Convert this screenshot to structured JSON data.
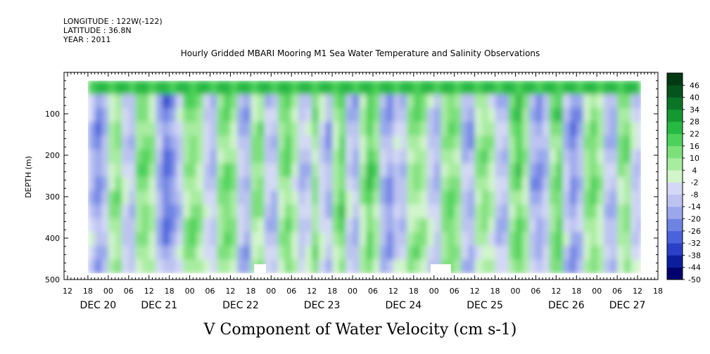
{
  "header": {
    "longitude": "LONGITUDE : 122W(-122)",
    "latitude": "LATITUDE : 36.8N",
    "year": "YEAR : 2011"
  },
  "chart_data": {
    "type": "heatmap",
    "title": "Hourly Gridded MBARI Mooring M1 Sea Water Temperature and Salinity Observations",
    "xlabel": "V Component of Water Velocity (cm s-1)",
    "ylabel": "DEPTH (m)",
    "x_unit": "hours",
    "x_range_hours": [
      0,
      174
    ],
    "data_range_hours": [
      6,
      169
    ],
    "y_range": [
      0,
      500
    ],
    "y_depth_top": 20,
    "y_data_range": [
      20,
      485
    ],
    "y_ticks": [
      100,
      200,
      300,
      400,
      500
    ],
    "hour_ticks": [
      {
        "h": 0,
        "label": "12"
      },
      {
        "h": 6,
        "label": "18"
      },
      {
        "h": 12,
        "label": "00"
      },
      {
        "h": 18,
        "label": "06"
      },
      {
        "h": 24,
        "label": "12"
      },
      {
        "h": 30,
        "label": "18"
      },
      {
        "h": 36,
        "label": "00"
      },
      {
        "h": 42,
        "label": "06"
      },
      {
        "h": 48,
        "label": "12"
      },
      {
        "h": 54,
        "label": "18"
      },
      {
        "h": 60,
        "label": "00"
      },
      {
        "h": 66,
        "label": "06"
      },
      {
        "h": 72,
        "label": "12"
      },
      {
        "h": 78,
        "label": "18"
      },
      {
        "h": 84,
        "label": "00"
      },
      {
        "h": 90,
        "label": "06"
      },
      {
        "h": 96,
        "label": "12"
      },
      {
        "h": 102,
        "label": "18"
      },
      {
        "h": 108,
        "label": "00"
      },
      {
        "h": 114,
        "label": "06"
      },
      {
        "h": 120,
        "label": "12"
      },
      {
        "h": 126,
        "label": "18"
      },
      {
        "h": 132,
        "label": "00"
      },
      {
        "h": 138,
        "label": "06"
      },
      {
        "h": 144,
        "label": "12"
      },
      {
        "h": 150,
        "label": "18"
      },
      {
        "h": 156,
        "label": "00"
      },
      {
        "h": 162,
        "label": "06"
      },
      {
        "h": 168,
        "label": "12"
      },
      {
        "h": 174,
        "label": "18"
      }
    ],
    "date_labels": [
      {
        "h": 9,
        "label": "DEC 20"
      },
      {
        "h": 27,
        "label": "DEC 21"
      },
      {
        "h": 51,
        "label": "DEC 22"
      },
      {
        "h": 75,
        "label": "DEC 23"
      },
      {
        "h": 99,
        "label": "DEC 24"
      },
      {
        "h": 123,
        "label": "DEC 25"
      },
      {
        "h": 147,
        "label": "DEC 26"
      },
      {
        "h": 165,
        "label": "DEC 27"
      }
    ],
    "colorbar": {
      "levels": [
        -50,
        -44,
        -38,
        -32,
        -26,
        -20,
        -14,
        -8,
        -2,
        4,
        10,
        16,
        22,
        28,
        34,
        40,
        46
      ],
      "labels": [
        "-50",
        "-44",
        "-38",
        "-32",
        "-26",
        "-20",
        "-14",
        "-8",
        "-2",
        "4",
        "10",
        "16",
        "22",
        "28",
        "34",
        "40",
        "46"
      ],
      "colors": [
        "#00006e",
        "#0d1e9c",
        "#2a40c6",
        "#4a62dc",
        "#6f83e4",
        "#9aa7ec",
        "#bcc3f1",
        "#d4d8f6",
        "#d2f5cc",
        "#a8eca0",
        "#7de07a",
        "#4cd25a",
        "#27b944",
        "#149832",
        "#0b7527",
        "#06541d",
        "#033a14"
      ]
    },
    "columns": [
      {
        "h": 6,
        "v": -12
      },
      {
        "h": 8,
        "v": -22
      },
      {
        "h": 10,
        "v": -12
      },
      {
        "h": 12,
        "v": 6
      },
      {
        "h": 14,
        "v": 12
      },
      {
        "h": 16,
        "v": -8
      },
      {
        "h": 18,
        "v": -12
      },
      {
        "h": 20,
        "v": 12
      },
      {
        "h": 22,
        "v": 14
      },
      {
        "h": 24,
        "v": 6
      },
      {
        "h": 26,
        "v": -14
      },
      {
        "h": 28,
        "v": -28
      },
      {
        "h": 30,
        "v": -22
      },
      {
        "h": 32,
        "v": -10
      },
      {
        "h": 34,
        "v": 10
      },
      {
        "h": 36,
        "v": 14
      },
      {
        "h": 38,
        "v": 8
      },
      {
        "h": 40,
        "v": -6
      },
      {
        "h": 42,
        "v": -12
      },
      {
        "h": 44,
        "v": 10
      },
      {
        "h": 46,
        "v": 16
      },
      {
        "h": 48,
        "v": 10
      },
      {
        "h": 50,
        "v": -10
      },
      {
        "h": 52,
        "v": -16
      },
      {
        "h": 54,
        "v": 8
      },
      {
        "h": 56,
        "v": 12
      },
      {
        "h": 58,
        "v": -10
      },
      {
        "h": 60,
        "v": -14
      },
      {
        "h": 62,
        "v": 8
      },
      {
        "h": 64,
        "v": 16
      },
      {
        "h": 66,
        "v": 4
      },
      {
        "h": 68,
        "v": -12
      },
      {
        "h": 70,
        "v": -8
      },
      {
        "h": 72,
        "v": 12
      },
      {
        "h": 74,
        "v": -6
      },
      {
        "h": 76,
        "v": -16
      },
      {
        "h": 78,
        "v": 8
      },
      {
        "h": 80,
        "v": 18
      },
      {
        "h": 82,
        "v": -8
      },
      {
        "h": 84,
        "v": -14
      },
      {
        "h": 86,
        "v": 6
      },
      {
        "h": 88,
        "v": 20
      },
      {
        "h": 90,
        "v": 10
      },
      {
        "h": 92,
        "v": -14
      },
      {
        "h": 94,
        "v": -20
      },
      {
        "h": 96,
        "v": -10
      },
      {
        "h": 98,
        "v": -12
      },
      {
        "h": 100,
        "v": 8
      },
      {
        "h": 102,
        "v": 12
      },
      {
        "h": 104,
        "v": 8
      },
      {
        "h": 106,
        "v": -8
      },
      {
        "h": 108,
        "v": -12
      },
      {
        "h": 110,
        "v": 10
      },
      {
        "h": 112,
        "v": 16
      },
      {
        "h": 114,
        "v": 10
      },
      {
        "h": 116,
        "v": -12
      },
      {
        "h": 118,
        "v": -16
      },
      {
        "h": 120,
        "v": 6
      },
      {
        "h": 122,
        "v": 12
      },
      {
        "h": 124,
        "v": 4
      },
      {
        "h": 126,
        "v": -10
      },
      {
        "h": 128,
        "v": -14
      },
      {
        "h": 130,
        "v": 10
      },
      {
        "h": 132,
        "v": 20
      },
      {
        "h": 134,
        "v": 8
      },
      {
        "h": 136,
        "v": -14
      },
      {
        "h": 138,
        "v": -20
      },
      {
        "h": 140,
        "v": -12
      },
      {
        "h": 142,
        "v": 12
      },
      {
        "h": 144,
        "v": 18
      },
      {
        "h": 146,
        "v": -10
      },
      {
        "h": 148,
        "v": -22
      },
      {
        "h": 150,
        "v": -14
      },
      {
        "h": 152,
        "v": 8
      },
      {
        "h": 154,
        "v": 14
      },
      {
        "h": 156,
        "v": 6
      },
      {
        "h": 158,
        "v": -12
      },
      {
        "h": 160,
        "v": -16
      },
      {
        "h": 162,
        "v": 8
      },
      {
        "h": 164,
        "v": 12
      },
      {
        "h": 166,
        "v": -6
      },
      {
        "h": 168,
        "v": -12
      }
    ],
    "blank_regions": [
      {
        "h_start": 55,
        "h_end": 58.5,
        "depth_start": 463,
        "depth_end": 500
      },
      {
        "h_start": 107,
        "h_end": 113,
        "depth_start": 463,
        "depth_end": 500
      }
    ]
  }
}
